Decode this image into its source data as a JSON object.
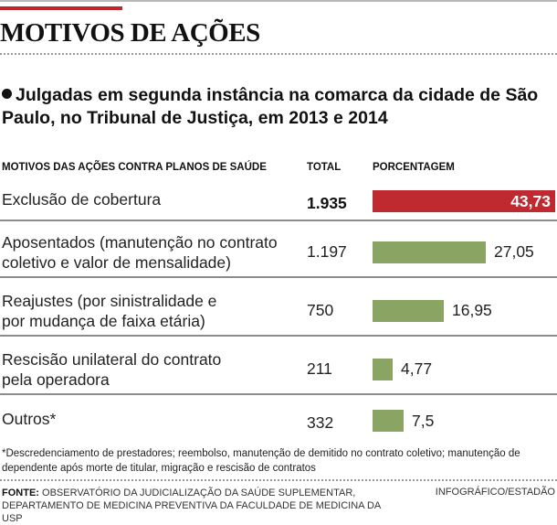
{
  "header": {
    "title": "MOTIVOS DE AÇÕES",
    "subtitle": "Julgadas em segunda instância na comarca da cidade de São Paulo, no Tribunal de Justiça, em 2013 e 2014"
  },
  "table": {
    "headers": {
      "reason": "MOTIVOS DAS AÇÕES CONTRA PLANOS DE SAÚDE",
      "total": "TOTAL",
      "percentage": "PORCENTAGEM"
    },
    "rows": [
      {
        "label": "Exclusão de cobertura",
        "total": "1.935",
        "percent": 43.73,
        "percent_label": "43,73",
        "highlight": true
      },
      {
        "label": "Aposentados (manutenção no contrato coletivo e valor de mensalidade)",
        "total": "1.197",
        "percent": 27.05,
        "percent_label": "27,05",
        "highlight": false
      },
      {
        "label": "Reajustes (por sinistralidade e por mudança de faixa etária)",
        "total": "750",
        "percent": 16.95,
        "percent_label": "16,95",
        "highlight": false
      },
      {
        "label": "Rescisão unilateral do contrato pela operadora",
        "total": "211",
        "percent": 4.77,
        "percent_label": "4,77",
        "highlight": false
      },
      {
        "label": "Outros*",
        "total": "332",
        "percent": 7.5,
        "percent_label": "7,5",
        "highlight": false
      }
    ]
  },
  "colors": {
    "highlight_bar": "#bf2a30",
    "default_bar": "#8aa563",
    "accent": "#c0272d"
  },
  "footnote": "*Descredenciamento de prestadores; reembolso, manutenção de demitido no contrato coletivo; manutenção de dependente após morte de titular, migração e rescisão de contratos",
  "source": {
    "label": "FONTE:",
    "text": "OBSERVATÓRIO DA JUDICIALIZAÇÃO DA SAÚDE SUPLEMENTAR, DEPARTAMENTO DE MEDICINA PREVENTIVA DA FACULDADE DE MEDICINA DA USP"
  },
  "credit": "INFOGRÁFICO/ESTADÃO",
  "chart_data": {
    "type": "bar",
    "orientation": "horizontal",
    "title": "MOTIVOS DE AÇÕES",
    "subtitle": "Julgadas em segunda instância na comarca da cidade de São Paulo, no Tribunal de Justiça, em 2013 e 2014",
    "categories": [
      "Exclusão de cobertura",
      "Aposentados (manutenção no contrato coletivo e valor de mensalidade)",
      "Reajustes (por sinistralidade e por mudança de faixa etária)",
      "Rescisão unilateral do contrato pela operadora",
      "Outros*"
    ],
    "series": [
      {
        "name": "TOTAL",
        "values": [
          1935,
          1197,
          750,
          211,
          332
        ]
      },
      {
        "name": "PORCENTAGEM",
        "values": [
          43.73,
          27.05,
          16.95,
          4.77,
          7.5
        ]
      }
    ],
    "xlabel": "PORCENTAGEM",
    "ylabel": "MOTIVOS DAS AÇÕES CONTRA PLANOS DE SAÚDE",
    "xlim": [
      0,
      43.73
    ],
    "grid": false,
    "legend": "none"
  }
}
